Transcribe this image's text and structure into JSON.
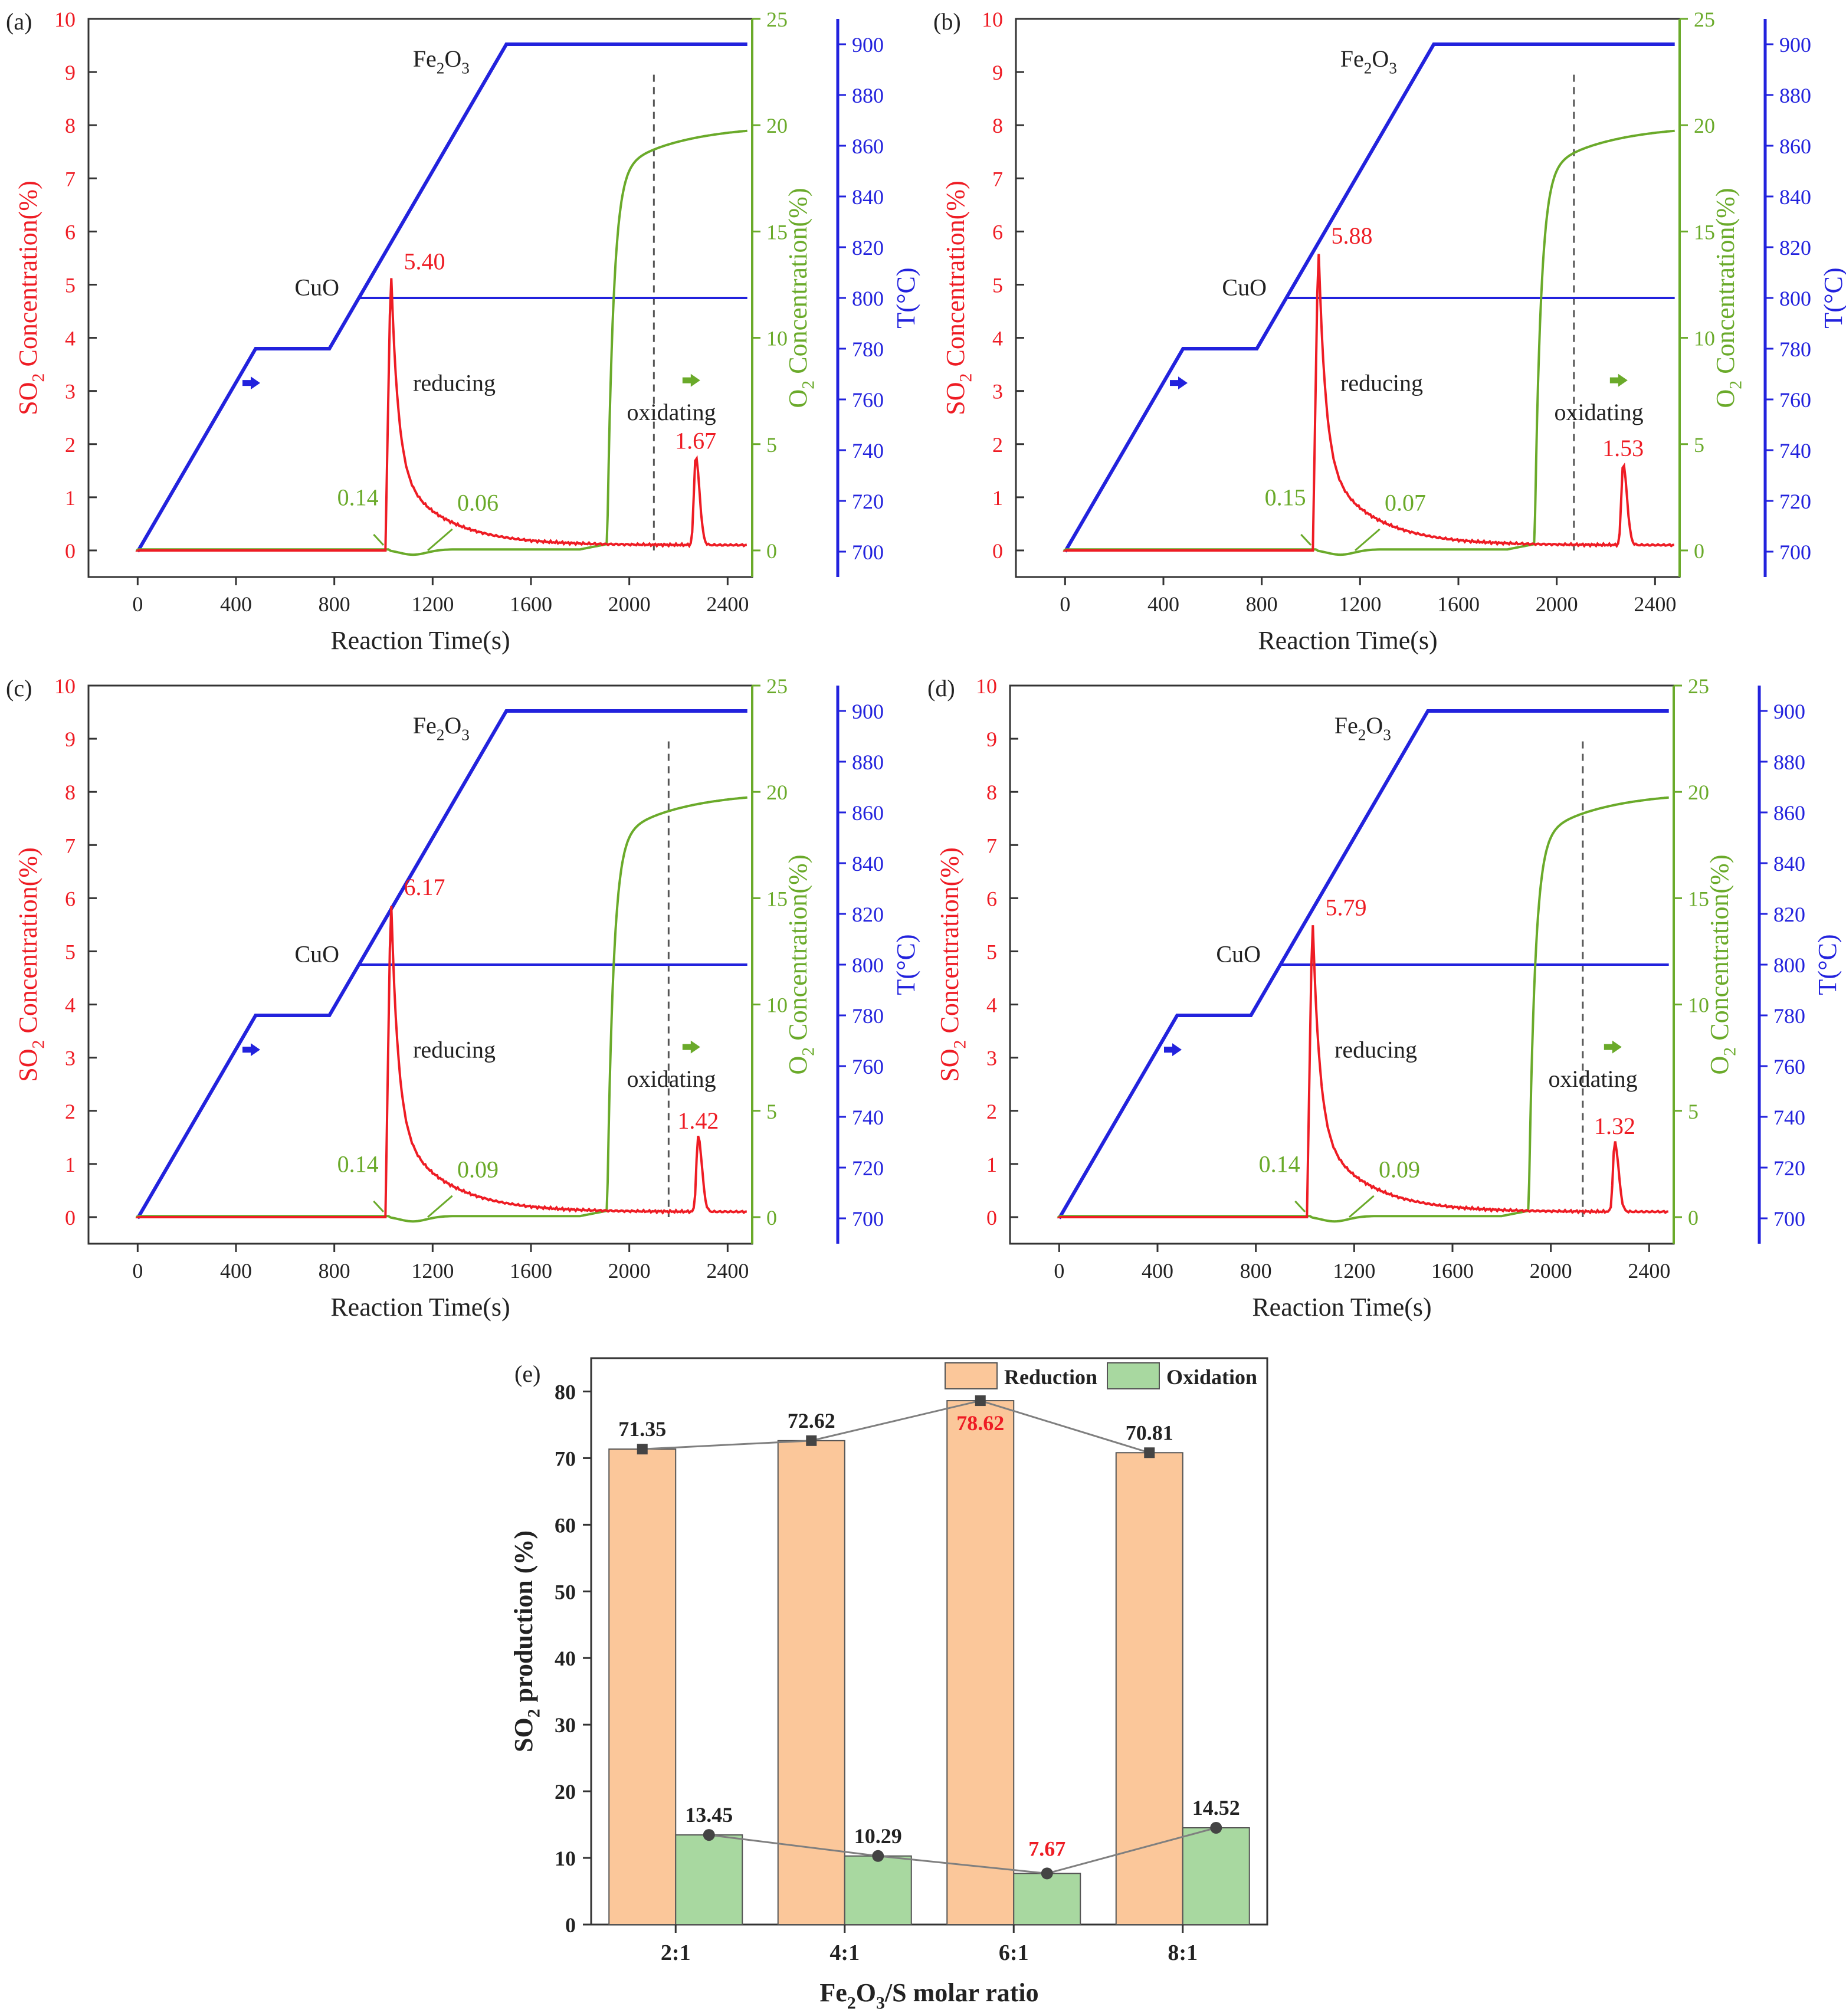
{
  "colors": {
    "so2": "#ee1c24",
    "o2": "#6aaa2a",
    "temp": "#2222dd",
    "reduction_fill": "#fbc79a",
    "oxidation_fill": "#a8d8a0",
    "axis": "#333333",
    "line_gray": "#7f7f7f",
    "highlight": "#ee1c24"
  },
  "chart_data": [
    {
      "id": "a",
      "type": "line",
      "panel_label": "(a)",
      "xlabel": "Reaction Time(s)",
      "ylabel_left": "SO2 Concentration(%)",
      "ylabel_mid": "O2 Concentration(%)",
      "ylabel_right": "T(°C)",
      "xlim": [
        -200,
        2500
      ],
      "xticks": [
        0,
        400,
        800,
        1200,
        1600,
        2000,
        2400
      ],
      "ylim_left": [
        -0.5,
        10
      ],
      "yticks_left": [
        0,
        1,
        2,
        3,
        4,
        5,
        6,
        7,
        8,
        9,
        10
      ],
      "ylim_mid": [
        -1.25,
        25
      ],
      "yticks_mid": [
        0,
        5,
        10,
        15,
        20,
        25
      ],
      "ylim_right": [
        690,
        910
      ],
      "yticks_right": [
        700,
        720,
        740,
        760,
        780,
        800,
        820,
        840,
        860,
        880,
        900
      ],
      "temperature_profile": {
        "x": [
          0,
          480,
          780,
          1500,
          2480
        ],
        "y": [
          700,
          780,
          780,
          900,
          900
        ]
      },
      "cuo_level": {
        "x_start": 900,
        "x_end": 2480,
        "value": 800
      },
      "so2_reducing_peak": {
        "time": 1030,
        "value": 5.4
      },
      "so2_tail_end": 0.1,
      "so2_oxidizing_peak": {
        "time": 2270,
        "value": 1.67
      },
      "o2_rise_time": 1950,
      "o2_plateau": 20,
      "o2_dip_min": -0.25,
      "vline_time": 2100,
      "labels": {
        "peak": "5.40",
        "ox_peak": "1.67",
        "o2_a": "0.14",
        "o2_b": "0.06",
        "reducing": "reducing",
        "oxidating": "oxidating",
        "cuo": "CuO",
        "fe2o3": "Fe2O3"
      }
    },
    {
      "id": "b",
      "type": "line",
      "panel_label": "(b)",
      "xlabel": "Reaction Time(s)",
      "ylabel_left": "SO2 Concentration(%)",
      "ylabel_mid": "O2 Concentration(%)",
      "ylabel_right": "T(°C)",
      "xlim": [
        -200,
        2500
      ],
      "xticks": [
        0,
        400,
        800,
        1200,
        1600,
        2000,
        2400
      ],
      "ylim_left": [
        -0.5,
        10
      ],
      "yticks_left": [
        0,
        1,
        2,
        3,
        4,
        5,
        6,
        7,
        8,
        9,
        10
      ],
      "ylim_mid": [
        -1.25,
        25
      ],
      "yticks_mid": [
        0,
        5,
        10,
        15,
        20,
        25
      ],
      "ylim_right": [
        690,
        910
      ],
      "yticks_right": [
        700,
        720,
        740,
        760,
        780,
        800,
        820,
        840,
        860,
        880,
        900
      ],
      "temperature_profile": {
        "x": [
          0,
          480,
          780,
          1500,
          2480
        ],
        "y": [
          700,
          780,
          780,
          900,
          900
        ]
      },
      "cuo_level": {
        "x_start": 900,
        "x_end": 2480,
        "value": 800
      },
      "so2_reducing_peak": {
        "time": 1030,
        "value": 5.88
      },
      "so2_tail_end": 0.1,
      "so2_oxidizing_peak": {
        "time": 2270,
        "value": 1.53
      },
      "o2_rise_time": 1950,
      "o2_plateau": 20,
      "o2_dip_min": -0.25,
      "vline_time": 2070,
      "labels": {
        "peak": "5.88",
        "ox_peak": "1.53",
        "o2_a": "0.15",
        "o2_b": "0.07",
        "reducing": "reducing",
        "oxidating": "oxidating",
        "cuo": "CuO",
        "fe2o3": "Fe2O3"
      }
    },
    {
      "id": "c",
      "type": "line",
      "panel_label": "(c)",
      "xlabel": "Reaction Time(s)",
      "ylabel_left": "SO2 Concentration(%)",
      "ylabel_mid": "O2 Concentration(%)",
      "ylabel_right": "T(°C)",
      "xlim": [
        -200,
        2500
      ],
      "xticks": [
        0,
        400,
        800,
        1200,
        1600,
        2000,
        2400
      ],
      "ylim_left": [
        -0.5,
        10
      ],
      "yticks_left": [
        0,
        1,
        2,
        3,
        4,
        5,
        6,
        7,
        8,
        9,
        10
      ],
      "ylim_mid": [
        -1.25,
        25
      ],
      "yticks_mid": [
        0,
        5,
        10,
        15,
        20,
        25
      ],
      "ylim_right": [
        690,
        910
      ],
      "yticks_right": [
        700,
        720,
        740,
        760,
        780,
        800,
        820,
        840,
        860,
        880,
        900
      ],
      "temperature_profile": {
        "x": [
          0,
          480,
          780,
          1500,
          2480
        ],
        "y": [
          700,
          780,
          780,
          900,
          900
        ]
      },
      "cuo_level": {
        "x_start": 900,
        "x_end": 2480,
        "value": 800
      },
      "so2_reducing_peak": {
        "time": 1030,
        "value": 6.17
      },
      "so2_tail_end": 0.1,
      "so2_oxidizing_peak": {
        "time": 2280,
        "value": 1.42
      },
      "o2_rise_time": 1950,
      "o2_plateau": 20,
      "o2_dip_min": -0.25,
      "vline_time": 2160,
      "labels": {
        "peak": "6.17",
        "ox_peak": "1.42",
        "o2_a": "0.14",
        "o2_b": "0.09",
        "reducing": "reducing",
        "oxidating": "oxidating",
        "cuo": "CuO",
        "fe2o3": "Fe2O3"
      }
    },
    {
      "id": "d",
      "type": "line",
      "panel_label": "(d)",
      "xlabel": "Reaction Time(s)",
      "ylabel_left": "SO2 Concentration(%)",
      "ylabel_mid": "O2 Concentration(%)",
      "ylabel_right": "T(°C)",
      "xlim": [
        -200,
        2500
      ],
      "xticks": [
        0,
        400,
        800,
        1200,
        1600,
        2000,
        2400
      ],
      "ylim_left": [
        -0.5,
        10
      ],
      "yticks_left": [
        0,
        1,
        2,
        3,
        4,
        5,
        6,
        7,
        8,
        9,
        10
      ],
      "ylim_mid": [
        -1.25,
        25
      ],
      "yticks_mid": [
        0,
        5,
        10,
        15,
        20,
        25
      ],
      "ylim_right": [
        690,
        910
      ],
      "yticks_right": [
        700,
        720,
        740,
        760,
        780,
        800,
        820,
        840,
        860,
        880,
        900
      ],
      "temperature_profile": {
        "x": [
          0,
          480,
          780,
          1500,
          2480
        ],
        "y": [
          700,
          780,
          780,
          900,
          900
        ]
      },
      "cuo_level": {
        "x_start": 900,
        "x_end": 2480,
        "value": 800
      },
      "so2_reducing_peak": {
        "time": 1030,
        "value": 5.79
      },
      "so2_tail_end": 0.1,
      "so2_oxidizing_peak": {
        "time": 2260,
        "value": 1.32
      },
      "o2_rise_time": 1950,
      "o2_plateau": 20,
      "o2_dip_min": -0.25,
      "vline_time": 2130,
      "labels": {
        "peak": "5.79",
        "ox_peak": "1.32",
        "o2_a": "0.14",
        "o2_b": "0.09",
        "reducing": "reducing",
        "oxidating": "oxidating",
        "cuo": "CuO",
        "fe2o3": "Fe2O3"
      }
    },
    {
      "id": "e",
      "type": "bar",
      "panel_label": "(e)",
      "title": "",
      "xlabel": "Fe2O3/S molar ratio",
      "ylabel": "SO2 production (%)",
      "categories": [
        "2:1",
        "4:1",
        "6:1",
        "8:1"
      ],
      "series": [
        {
          "name": "Reduction",
          "values": [
            71.35,
            72.62,
            78.62,
            70.81
          ]
        },
        {
          "name": "Oxidation",
          "values": [
            13.45,
            10.29,
            7.67,
            14.52
          ]
        }
      ],
      "value_labels": {
        "Reduction": [
          "71.35",
          "72.62",
          "78.62",
          "70.81"
        ],
        "Oxidation": [
          "13.45",
          "10.29",
          "7.67",
          "14.52"
        ]
      },
      "highlight_index": 2,
      "ylim": [
        0,
        85
      ],
      "yticks": [
        0,
        10,
        20,
        30,
        40,
        50,
        60,
        70,
        80
      ],
      "legend_position": "top-right"
    }
  ]
}
